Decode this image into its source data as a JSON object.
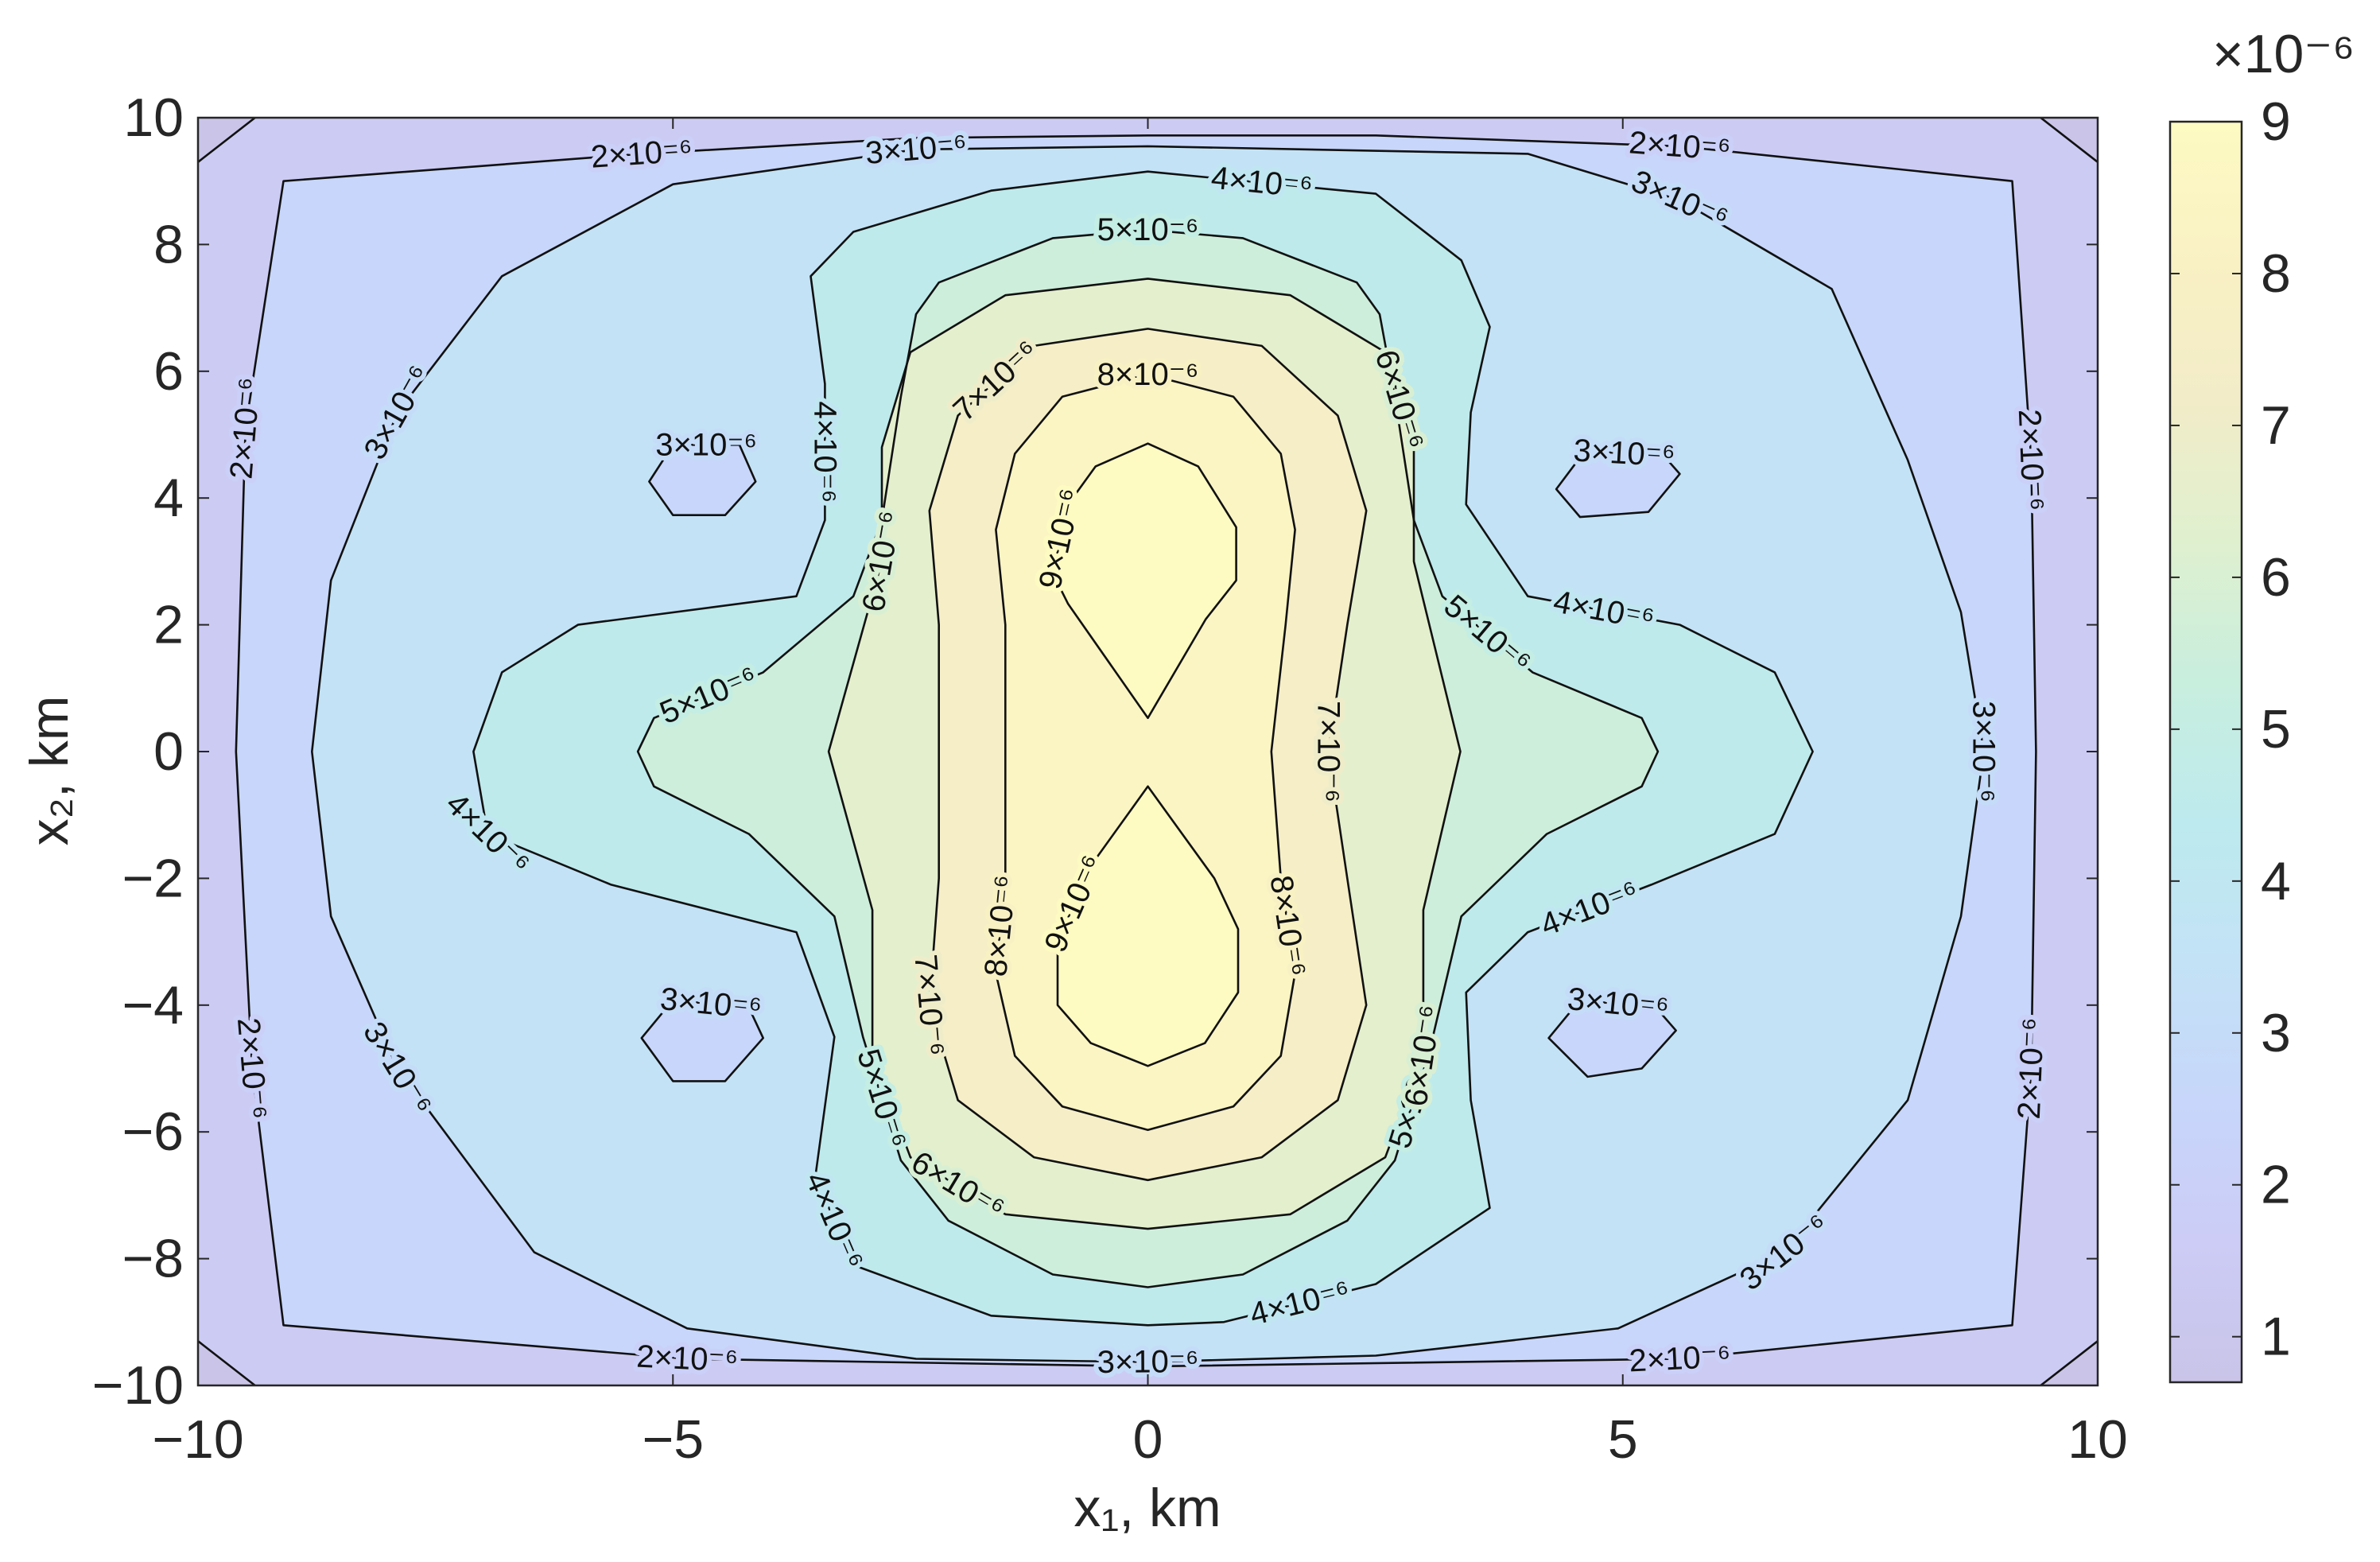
{
  "chart_data": {
    "type": "contour",
    "xlabel": "x₁, km",
    "ylabel": "x₂, km",
    "xlim": [
      -10,
      10
    ],
    "ylim": [
      -10,
      10
    ],
    "xticks": [
      {
        "value": -10,
        "label": "−10"
      },
      {
        "value": -5,
        "label": "−5"
      },
      0,
      5,
      10
    ],
    "yticks": [
      {
        "value": -10,
        "label": "−10"
      },
      {
        "value": -8,
        "label": "−8"
      },
      {
        "value": -6,
        "label": "−6"
      },
      {
        "value": -4,
        "label": "−4"
      },
      {
        "value": -2,
        "label": "−2"
      },
      0,
      2,
      4,
      6,
      8,
      10
    ],
    "clim": [
      0.7,
      9
    ],
    "cticks": [
      1,
      2,
      3,
      4,
      5,
      6,
      7,
      8,
      9
    ],
    "colorbar_multiplier": "×10⁻⁶",
    "colormap": [
      "#c9c4e8",
      "#ccccf6",
      "#c7d6fa",
      "#c3e2f6",
      "#bdeaee",
      "#c8eede",
      "#dff0cf",
      "#f2ecc8",
      "#f9f1c4",
      "#fdfac2"
    ],
    "line_color": "#111111",
    "contours": [
      {
        "level": 1,
        "pieces": [
          {
            "x": [
              -10,
              -9.4
            ],
            "y": [
              9.3,
              10
            ]
          },
          {
            "x": [
              9.4,
              10
            ],
            "y": [
              10,
              9.3
            ]
          },
          {
            "x": [
              -10,
              -9.4
            ],
            "y": [
              -9.3,
              -10
            ]
          },
          {
            "x": [
              9.4,
              10
            ],
            "y": [
              -10,
              -9.3
            ]
          }
        ]
      },
      {
        "level": 2,
        "label": "2×10⁻⁶",
        "pieces": [
          {
            "x": [
              -9.1,
              -5.33,
              -2.44,
              0,
              2.4,
              5.6,
              9.1,
              9.3,
              9.35,
              9.3,
              9.1,
              5.6,
              0,
              -4.85,
              -9.1,
              -9.43,
              -9.6,
              -9.5
            ],
            "y": [
              9.0,
              9.43,
              9.68,
              9.72,
              9.72,
              9.55,
              9.0,
              4.6,
              0,
              -5.0,
              -9.05,
              -9.58,
              -9.7,
              -9.58,
              -9.05,
              -5.0,
              0,
              5.1
            ]
          }
        ]
      },
      {
        "level": 3,
        "label": "3×10⁻⁶",
        "pieces": [
          {
            "x": [
              0,
              4,
              5.6,
              7.2,
              8.0,
              8.56,
              8.8,
              8.56,
              8.0,
              6.7,
              4.95,
              2.4,
              0,
              -2.44,
              -4.85,
              -6.46,
              -7.9,
              -8.6,
              -8.8,
              -8.6,
              -7.9,
              -6.8,
              -5.0,
              -2.44
            ],
            "y": [
              9.55,
              9.43,
              8.7,
              7.3,
              4.6,
              2.2,
              0,
              -2.6,
              -5.5,
              -7.9,
              -9.1,
              -9.53,
              -9.63,
              -9.58,
              -9.1,
              -7.9,
              -5.0,
              -2.6,
              0,
              2.7,
              5.35,
              7.5,
              8.95,
              9.5
            ]
          },
          {
            "x": [
              -5.25,
              -5.0,
              -4.3,
              -4.13,
              -4.45,
              -5.0
            ],
            "y": [
              4.26,
              4.84,
              4.84,
              4.26,
              3.73,
              3.73
            ]
          },
          {
            "x": [
              4.3,
              4.6,
              5.43,
              5.6,
              5.27,
              4.55
            ],
            "y": [
              4.14,
              4.74,
              4.67,
              4.38,
              3.78,
              3.7
            ]
          },
          {
            "x": [
              -5.33,
              -5.0,
              -4.2,
              -4.05,
              -4.45,
              -5.0
            ],
            "y": [
              -4.52,
              -3.92,
              -4.04,
              -4.52,
              -5.2,
              -5.2
            ]
          },
          {
            "x": [
              4.22,
              4.55,
              5.35,
              5.56,
              5.2,
              4.63
            ],
            "y": [
              -4.52,
              -3.92,
              -4.04,
              -4.4,
              -5.0,
              -5.13
            ]
          }
        ]
      },
      {
        "level": 4,
        "label": "4×10⁻⁶",
        "pieces": [
          {
            "x": [
              0,
              2.4,
              3.3,
              3.6,
              3.4,
              3.35,
              4.0,
              5.6,
              6.6,
              7.0,
              6.6,
              5.3,
              4.0,
              3.35,
              3.4,
              3.6,
              2.4,
              0.8,
              0,
              -1.65,
              -3.1,
              -3.5,
              -3.3,
              -3.7,
              -5.65,
              -6.95,
              -7.1,
              -6.8,
              -6.0,
              -3.7,
              -3.4,
              -3.4,
              -3.55,
              -3.1,
              -1.65
            ],
            "y": [
              9.15,
              8.8,
              7.75,
              6.7,
              5.35,
              3.9,
              2.45,
              2.0,
              1.25,
              0,
              -1.3,
              -2.1,
              -2.85,
              -3.8,
              -5.5,
              -7.2,
              -8.4,
              -9.0,
              -9.05,
              -8.9,
              -8.1,
              -6.7,
              -4.5,
              -2.85,
              -2.1,
              -1.3,
              0,
              1.25,
              2.0,
              2.45,
              3.65,
              5.8,
              7.5,
              8.2,
              8.85
            ]
          }
        ]
      },
      {
        "level": 5,
        "label": "5×10⁻⁶",
        "pieces": [
          {
            "x": [
              0,
              1.0,
              2.2,
              2.44,
              2.6,
              2.8,
              3.1,
              4.05,
              5.2,
              5.37,
              5.2,
              4.2,
              3.3,
              3.0,
              2.6,
              2.1,
              1.0,
              0,
              -1.0,
              -2.1,
              -2.6,
              -3.0,
              -3.3,
              -4.2,
              -5.2,
              -5.37,
              -5.2,
              -4.05,
              -3.1,
              -2.8,
              -2.6,
              -2.44,
              -2.2,
              -1.0
            ],
            "y": [
              8.23,
              8.1,
              7.4,
              6.9,
              5.6,
              3.65,
              2.45,
              1.25,
              0.53,
              0,
              -0.55,
              -1.3,
              -2.6,
              -4.5,
              -6.45,
              -7.4,
              -8.25,
              -8.45,
              -8.25,
              -7.4,
              -6.45,
              -4.5,
              -2.6,
              -1.3,
              -0.55,
              0,
              0.53,
              1.25,
              2.45,
              3.65,
              5.6,
              6.9,
              7.4,
              8.1
            ]
          }
        ]
      },
      {
        "level": 6,
        "label": "6×10⁻⁶",
        "pieces": [
          {
            "x": [
              0,
              1.5,
              2.5,
              2.8,
              2.8,
              3.29,
              2.9,
              2.9,
              2.5,
              1.5,
              0,
              -1.5,
              -2.5,
              -2.9,
              -2.9,
              -3.36,
              -2.8,
              -2.8,
              -2.5,
              -1.5
            ],
            "y": [
              7.46,
              7.2,
              6.3,
              4.8,
              3,
              0,
              -2.5,
              -4.8,
              -6.4,
              -7.3,
              -7.53,
              -7.3,
              -6.4,
              -4.8,
              -2.5,
              0,
              3,
              4.8,
              6.3,
              7.2
            ]
          }
        ]
      },
      {
        "level": 7,
        "label": "7×10⁻⁶",
        "pieces": [
          {
            "x": [
              0,
              1.2,
              2.0,
              2.3,
              2.1,
              1.9,
              2.1,
              2.3,
              2.0,
              1.2,
              0,
              -1.2,
              -2.0,
              -2.3,
              -2.2,
              -2.2,
              -2.2,
              -2.3,
              -2.0,
              -1.2
            ],
            "y": [
              6.67,
              6.4,
              5.3,
              3.8,
              2,
              0,
              -2,
              -4,
              -5.5,
              -6.4,
              -6.76,
              -6.4,
              -5.5,
              -4,
              -2,
              0,
              2,
              3.8,
              5.3,
              6.4
            ]
          }
        ]
      },
      {
        "level": 8,
        "label": "8×10⁻⁶",
        "pieces": [
          {
            "x": [
              0,
              -0.9,
              -1.4,
              -1.6,
              -1.5,
              -1.5,
              -1.5,
              -1.6,
              -1.4,
              -0.9,
              0,
              0.9,
              1.4,
              1.55,
              1.4,
              1.3,
              1.45,
              1.55,
              1.4,
              0.9
            ],
            "y": [
              5.95,
              5.6,
              4.7,
              3.5,
              2,
              0,
              -2,
              -3.5,
              -4.8,
              -5.6,
              -5.97,
              -5.6,
              -4.8,
              -3.5,
              -2,
              0,
              2,
              3.5,
              4.7,
              5.6
            ]
          }
        ]
      },
      {
        "level": 9,
        "label": "9×10⁻⁶",
        "pieces": [
          {
            "x": [
              0,
              -0.84,
              -1.0,
              -0.84,
              -0.55,
              0,
              0.53,
              0.93,
              0.93,
              0.61
            ],
            "y": [
              0.53,
              2.33,
              2.81,
              3.9,
              4.5,
              4.86,
              4.5,
              3.54,
              2.7,
              2.09
            ]
          },
          {
            "x": [
              0,
              -0.6,
              -0.95,
              -0.95,
              -0.6,
              0,
              0.6,
              0.95,
              0.95,
              0.7
            ],
            "y": [
              -0.55,
              -1.8,
              -3.0,
              -4.0,
              -4.6,
              -4.96,
              -4.6,
              -3.8,
              -2.8,
              -2.0
            ]
          }
        ]
      }
    ]
  }
}
